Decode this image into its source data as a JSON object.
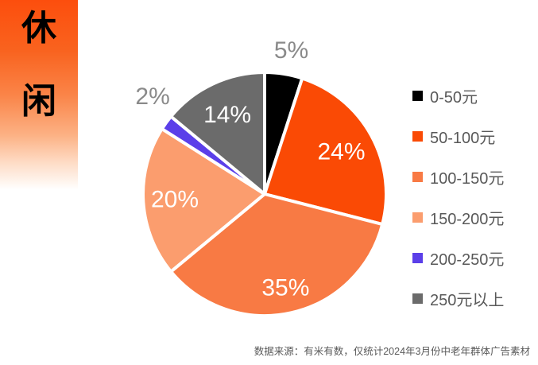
{
  "header": {
    "vertical_title_chars": [
      "休",
      "闲"
    ]
  },
  "chart_data": {
    "type": "pie",
    "title": "",
    "direction": "clockwise",
    "start_angle_deg": 0,
    "legend_position": "right",
    "inside_label_color": "#ffffff",
    "outside_label_color": "#8a8a8a",
    "slice_border_color": "#ffffff",
    "slices": [
      {
        "label": "0-50元",
        "value": 5,
        "pct_label": "5%",
        "color": "#000000",
        "label_outside": true,
        "label_r_factor": 1.2,
        "label_angle_deg": 10.5
      },
      {
        "label": "50-100元",
        "value": 24,
        "pct_label": "24%",
        "color": "#fa4a05",
        "label_outside": false,
        "label_r_factor": 0.72
      },
      {
        "label": "100-150元",
        "value": 35,
        "pct_label": "35%",
        "color": "#f87a44",
        "label_outside": false,
        "label_r_factor": 0.79
      },
      {
        "label": "150-200元",
        "value": 20,
        "pct_label": "20%",
        "color": "#fb9d6e",
        "label_outside": false,
        "label_r_factor": 0.74
      },
      {
        "label": "200-250元",
        "value": 2,
        "pct_label": "2%",
        "color": "#5b3fe9",
        "label_outside": true,
        "label_r_factor": 1.22,
        "label_angle_deg": 311
      },
      {
        "label": "250元以上",
        "value": 14,
        "pct_label": "14%",
        "color": "#6b6b6b",
        "label_outside": false,
        "label_r_factor": 0.72
      }
    ]
  },
  "footer": {
    "source_note": "数据来源：有米有数，仅统计2024年3月份中老年群体广告素材"
  }
}
